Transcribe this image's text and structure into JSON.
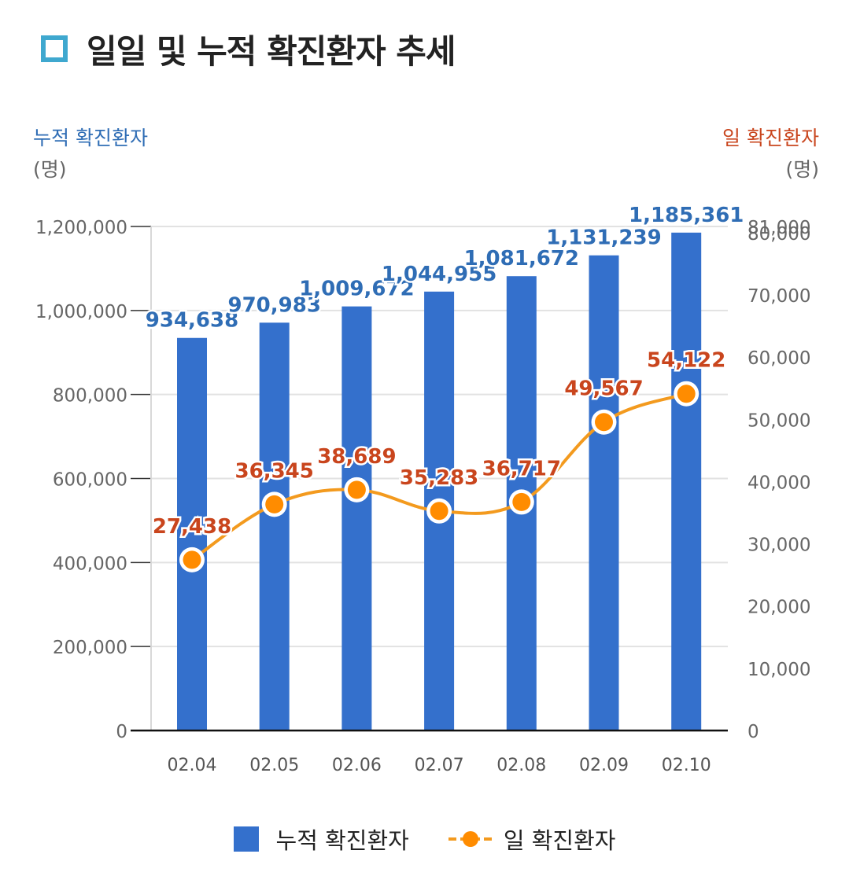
{
  "title": "일일 및 누적 확진환자 추세",
  "left_axis": {
    "title": "누적 확진환자",
    "unit": "(명)"
  },
  "right_axis": {
    "title": "일 확진환자",
    "unit": "(명)"
  },
  "colors": {
    "bar": "#3470cc",
    "bar_label": "#2f6db5",
    "line": "#f39a1e",
    "marker": "#ff8c00",
    "line_label": "#c9451d",
    "title_icon": "#3fa8cf"
  },
  "legend": {
    "bar_label": "누적 확진환자",
    "line_label": "일 확진환자"
  },
  "chart_data": {
    "type": "bar",
    "categories": [
      "02.04",
      "02.05",
      "02.06",
      "02.07",
      "02.08",
      "02.09",
      "02.10"
    ],
    "series": [
      {
        "name": "누적 확진환자",
        "type": "bar",
        "axis": "left",
        "values": [
          934638,
          970983,
          1009672,
          1044955,
          1081672,
          1131239,
          1185361
        ],
        "labels": [
          "934,638",
          "970,983",
          "1,009,672",
          "1,044,955",
          "1,081,672",
          "1,131,239",
          "1,185,361"
        ]
      },
      {
        "name": "일 확진환자",
        "type": "line",
        "axis": "right",
        "values": [
          27438,
          36345,
          38689,
          35283,
          36717,
          49567,
          54122
        ],
        "labels": [
          "27,438",
          "36,345",
          "38,689",
          "35,283",
          "36,717",
          "49,567",
          "54,122"
        ]
      }
    ],
    "left_ylim": [
      0,
      1200000
    ],
    "left_ticks": [
      "0",
      "200,000",
      "400,000",
      "600,000",
      "800,000",
      "1,000,000",
      "1,200,000"
    ],
    "right_ylim": [
      0,
      81000
    ],
    "right_ticks": [
      "0",
      "10,000",
      "20,000",
      "30,000",
      "40,000",
      "50,000",
      "60,000",
      "70,000",
      "80,000",
      "81,000"
    ],
    "grid": true,
    "legend_position": "bottom"
  }
}
